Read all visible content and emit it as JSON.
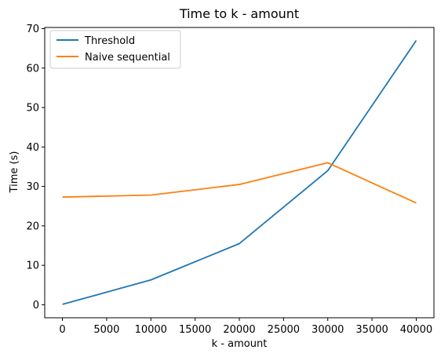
{
  "chart_data": {
    "type": "line",
    "title": "Time to k - amount",
    "xlabel": "k - amount",
    "ylabel": "Time (s)",
    "x": [
      0,
      10000,
      20000,
      30000,
      40000
    ],
    "series": [
      {
        "name": "Threshold",
        "color": "#1f77b4",
        "values": [
          0.1,
          6.3,
          15.5,
          34.0,
          67.0
        ]
      },
      {
        "name": "Naive sequential",
        "color": "#ff7f0e",
        "values": [
          27.3,
          27.8,
          30.5,
          36.0,
          25.8
        ]
      }
    ],
    "xlim": [
      -2000,
      42000
    ],
    "ylim": [
      -3.3,
      70.3
    ],
    "xticks": [
      0,
      5000,
      10000,
      15000,
      20000,
      25000,
      30000,
      35000,
      40000
    ],
    "yticks": [
      0,
      10,
      20,
      30,
      40,
      50,
      60,
      70
    ],
    "xtick_labels": [
      "0",
      "5000",
      "10000",
      "15000",
      "20000",
      "25000",
      "30000",
      "35000",
      "40000"
    ],
    "ytick_labels": [
      "0",
      "10",
      "20",
      "30",
      "40",
      "50",
      "60",
      "70"
    ],
    "grid": false,
    "legend": "top-left"
  }
}
